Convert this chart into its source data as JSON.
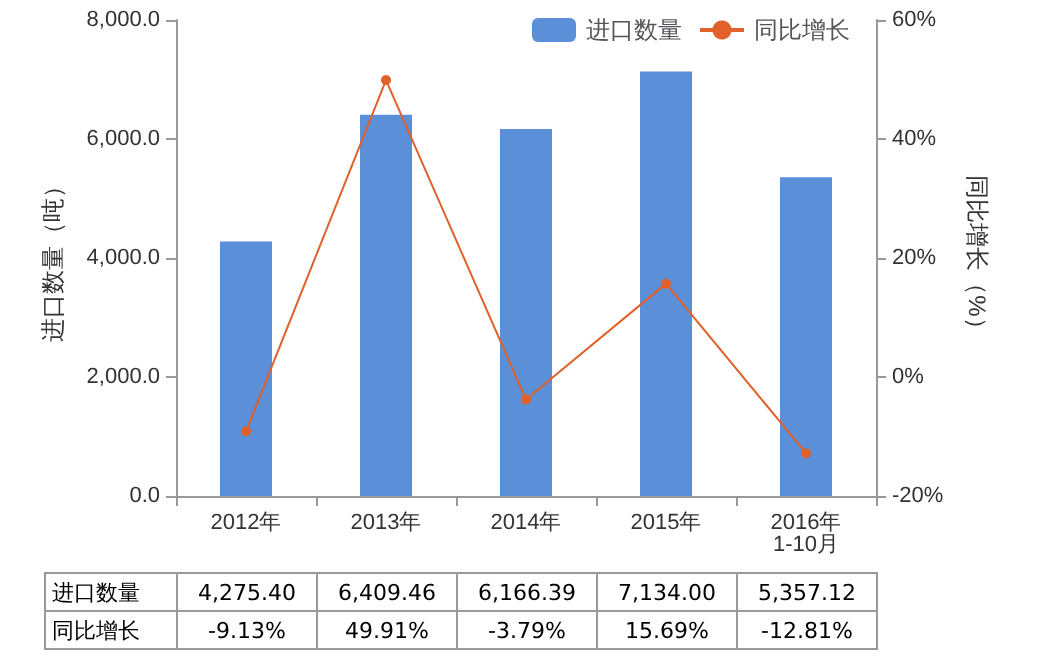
{
  "chart_data": {
    "type": "bar",
    "categories": [
      "2012年",
      "2013年",
      "2014年",
      "2015年",
      "2016年1-10月"
    ],
    "ylabel": "进口数量（吨）",
    "y2label": "同比增长（%）",
    "series": [
      {
        "name": "进口数量",
        "color": "#5b8fd8",
        "values": [
          4275.4,
          6409.46,
          6166.39,
          7134.0,
          5357.12
        ],
        "value_labels": [
          "4,275.40",
          "6,409.46",
          "6,166.39",
          "7,134.00",
          "5,357.12"
        ]
      },
      {
        "name": "同比增长",
        "type": "line",
        "axis": "y2",
        "color": "#e0622a",
        "values": [
          -9.13,
          49.91,
          -3.79,
          15.69,
          -12.81
        ],
        "value_labels": [
          "-9.13%",
          "49.91%",
          "-3.79%",
          "15.69%",
          "-12.81%"
        ]
      }
    ],
    "ylim": [
      0,
      8000
    ],
    "yticks": [
      {
        "value": 0,
        "label": "0.0"
      },
      {
        "value": 2000,
        "label": "2,000.0"
      },
      {
        "value": 4000,
        "label": "4,000.0"
      },
      {
        "value": 6000,
        "label": "6,000.0"
      },
      {
        "value": 8000,
        "label": "8,000.0"
      }
    ],
    "y2lim": [
      -20,
      60
    ],
    "y2ticks": [
      {
        "value": -20,
        "label": "-20%"
      },
      {
        "value": 0,
        "label": "0%"
      },
      {
        "value": 20,
        "label": "20%"
      },
      {
        "value": 40,
        "label": "40%"
      },
      {
        "value": 60,
        "label": "60%"
      }
    ],
    "legend": "top right",
    "marker": "circle",
    "grid": false
  }
}
